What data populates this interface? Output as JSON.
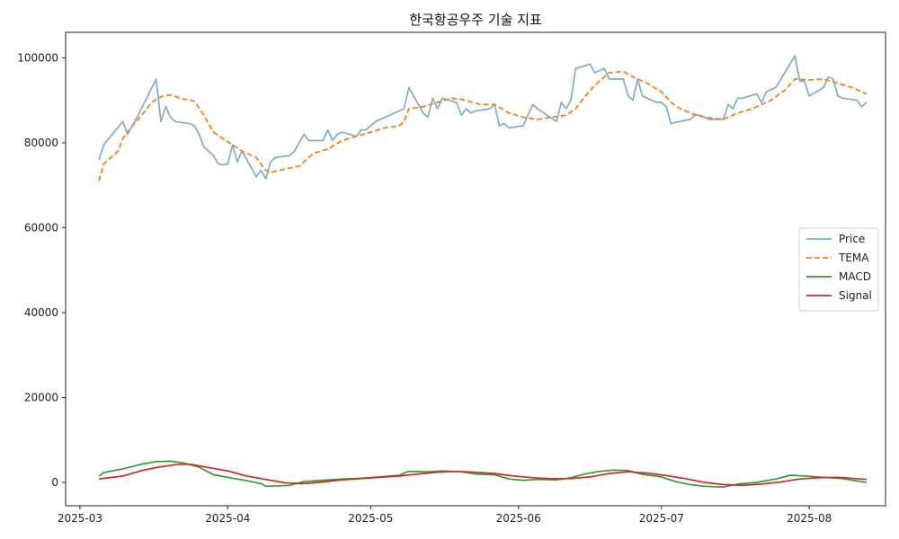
{
  "chart_data": {
    "type": "line",
    "title": "한국항공우주 기술 지표",
    "xlabel": "",
    "ylabel": "",
    "xlim": [
      "2025-02-26",
      "2025-08-17"
    ],
    "ylim": [
      -5500,
      106000
    ],
    "x_ticks": [
      {
        "date": "2025-03-01",
        "label": "2025-03"
      },
      {
        "date": "2025-04-01",
        "label": "2025-04"
      },
      {
        "date": "2025-05-01",
        "label": "2025-05"
      },
      {
        "date": "2025-06-01",
        "label": "2025-06"
      },
      {
        "date": "2025-07-01",
        "label": "2025-07"
      },
      {
        "date": "2025-08-01",
        "label": "2025-08"
      }
    ],
    "y_ticks": [
      {
        "value": 0,
        "label": "0"
      },
      {
        "value": 20000,
        "label": "20000"
      },
      {
        "value": 40000,
        "label": "40000"
      },
      {
        "value": 60000,
        "label": "60000"
      },
      {
        "value": 80000,
        "label": "80000"
      },
      {
        "value": 100000,
        "label": "100000"
      }
    ],
    "grid": false,
    "legend_position": "right",
    "series": [
      {
        "name": "Price",
        "color": "#7aadd0",
        "dash": "solid",
        "points": [
          [
            "2025-03-05",
            76000
          ],
          [
            "2025-03-06",
            79500
          ],
          [
            "2025-03-10",
            85000
          ],
          [
            "2025-03-11",
            82000
          ],
          [
            "2025-03-13",
            86000
          ],
          [
            "2025-03-17",
            95000
          ],
          [
            "2025-03-18",
            85000
          ],
          [
            "2025-03-19",
            88500
          ],
          [
            "2025-03-20",
            86000
          ],
          [
            "2025-03-21",
            85000
          ],
          [
            "2025-03-24",
            84500
          ],
          [
            "2025-03-25",
            84000
          ],
          [
            "2025-03-26",
            82000
          ],
          [
            "2025-03-27",
            79000
          ],
          [
            "2025-03-28",
            78000
          ],
          [
            "2025-03-29",
            77000
          ],
          [
            "2025-03-30",
            75000
          ],
          [
            "2025-03-31",
            74800
          ],
          [
            "2025-04-01",
            75000
          ],
          [
            "2025-04-02",
            79500
          ],
          [
            "2025-04-03",
            75500
          ],
          [
            "2025-04-04",
            78000
          ],
          [
            "2025-04-07",
            72000
          ],
          [
            "2025-04-08",
            73500
          ],
          [
            "2025-04-09",
            71500
          ],
          [
            "2025-04-10",
            75500
          ],
          [
            "2025-04-11",
            76500
          ],
          [
            "2025-04-14",
            77000
          ],
          [
            "2025-04-15",
            78000
          ],
          [
            "2025-04-16",
            80000
          ],
          [
            "2025-04-17",
            82000
          ],
          [
            "2025-04-18",
            80500
          ],
          [
            "2025-04-21",
            80500
          ],
          [
            "2025-04-22",
            83000
          ],
          [
            "2025-04-23",
            80500
          ],
          [
            "2025-04-24",
            82000
          ],
          [
            "2025-04-25",
            82500
          ],
          [
            "2025-04-28",
            81500
          ],
          [
            "2025-04-29",
            83000
          ],
          [
            "2025-04-30",
            83000
          ],
          [
            "2025-05-02",
            85000
          ],
          [
            "2025-05-07",
            87500
          ],
          [
            "2025-05-08",
            88000
          ],
          [
            "2025-05-09",
            93000
          ],
          [
            "2025-05-12",
            87000
          ],
          [
            "2025-05-13",
            86000
          ],
          [
            "2025-05-14",
            90500
          ],
          [
            "2025-05-15",
            88000
          ],
          [
            "2025-05-16",
            90500
          ],
          [
            "2025-05-19",
            89500
          ],
          [
            "2025-05-20",
            86500
          ],
          [
            "2025-05-21",
            88000
          ],
          [
            "2025-05-22",
            87000
          ],
          [
            "2025-05-23",
            87500
          ],
          [
            "2025-05-26",
            88000
          ],
          [
            "2025-05-27",
            89000
          ],
          [
            "2025-05-28",
            84000
          ],
          [
            "2025-05-29",
            84500
          ],
          [
            "2025-05-30",
            83500
          ],
          [
            "2025-06-02",
            84000
          ],
          [
            "2025-06-04",
            89000
          ],
          [
            "2025-06-05",
            88000
          ],
          [
            "2025-06-09",
            85000
          ],
          [
            "2025-06-10",
            89500
          ],
          [
            "2025-06-11",
            88000
          ],
          [
            "2025-06-12",
            90000
          ],
          [
            "2025-06-13",
            97500
          ],
          [
            "2025-06-16",
            98500
          ],
          [
            "2025-06-17",
            96500
          ],
          [
            "2025-06-18",
            97000
          ],
          [
            "2025-06-19",
            97500
          ],
          [
            "2025-06-20",
            95000
          ],
          [
            "2025-06-23",
            95000
          ],
          [
            "2025-06-24",
            91000
          ],
          [
            "2025-06-25",
            90000
          ],
          [
            "2025-06-26",
            95000
          ],
          [
            "2025-06-27",
            91000
          ],
          [
            "2025-06-30",
            89500
          ],
          [
            "2025-07-01",
            89500
          ],
          [
            "2025-07-02",
            88500
          ],
          [
            "2025-07-03",
            84500
          ],
          [
            "2025-07-04",
            84800
          ],
          [
            "2025-07-07",
            85500
          ],
          [
            "2025-07-08",
            86500
          ],
          [
            "2025-07-09",
            86500
          ],
          [
            "2025-07-10",
            86000
          ],
          [
            "2025-07-11",
            85500
          ],
          [
            "2025-07-14",
            85500
          ],
          [
            "2025-07-15",
            89000
          ],
          [
            "2025-07-16",
            88000
          ],
          [
            "2025-07-17",
            90500
          ],
          [
            "2025-07-18",
            90500
          ],
          [
            "2025-07-21",
            91500
          ],
          [
            "2025-07-22",
            89500
          ],
          [
            "2025-07-23",
            92000
          ],
          [
            "2025-07-25",
            93000
          ],
          [
            "2025-07-29",
            100500
          ],
          [
            "2025-07-30",
            94500
          ],
          [
            "2025-07-31",
            94500
          ],
          [
            "2025-08-01",
            91000
          ],
          [
            "2025-08-04",
            93000
          ],
          [
            "2025-08-05",
            95500
          ],
          [
            "2025-08-06",
            95000
          ],
          [
            "2025-08-07",
            91000
          ],
          [
            "2025-08-08",
            90500
          ],
          [
            "2025-08-11",
            90000
          ],
          [
            "2025-08-12",
            88500
          ],
          [
            "2025-08-13",
            89500
          ]
        ]
      },
      {
        "name": "TEMA",
        "color": "#ff7f0e",
        "dash": "dashed",
        "points": [
          [
            "2025-03-05",
            71000
          ],
          [
            "2025-03-06",
            75000
          ],
          [
            "2025-03-09",
            78000
          ],
          [
            "2025-03-10",
            81000
          ],
          [
            "2025-03-12",
            84000
          ],
          [
            "2025-03-14",
            86500
          ],
          [
            "2025-03-16",
            89500
          ],
          [
            "2025-03-18",
            90800
          ],
          [
            "2025-03-20",
            91300
          ],
          [
            "2025-03-22",
            90500
          ],
          [
            "2025-03-25",
            89800
          ],
          [
            "2025-03-27",
            86500
          ],
          [
            "2025-03-29",
            82500
          ],
          [
            "2025-03-31",
            81000
          ],
          [
            "2025-04-02",
            79500
          ],
          [
            "2025-04-04",
            78000
          ],
          [
            "2025-04-07",
            76500
          ],
          [
            "2025-04-09",
            73500
          ],
          [
            "2025-04-10",
            73000
          ],
          [
            "2025-04-13",
            73800
          ],
          [
            "2025-04-16",
            74500
          ],
          [
            "2025-04-19",
            77500
          ],
          [
            "2025-04-22",
            78500
          ],
          [
            "2025-04-25",
            80500
          ],
          [
            "2025-04-28",
            81500
          ],
          [
            "2025-05-01",
            82500
          ],
          [
            "2025-05-04",
            83500
          ],
          [
            "2025-05-07",
            84000
          ],
          [
            "2025-05-08",
            85000
          ],
          [
            "2025-05-09",
            88000
          ],
          [
            "2025-05-12",
            88500
          ],
          [
            "2025-05-15",
            89500
          ],
          [
            "2025-05-18",
            90500
          ],
          [
            "2025-05-21",
            90000
          ],
          [
            "2025-05-24",
            89000
          ],
          [
            "2025-05-27",
            89000
          ],
          [
            "2025-05-30",
            87000
          ],
          [
            "2025-06-02",
            86000
          ],
          [
            "2025-06-05",
            85500
          ],
          [
            "2025-06-08",
            86000
          ],
          [
            "2025-06-11",
            86500
          ],
          [
            "2025-06-13",
            88000
          ],
          [
            "2025-06-15",
            91000
          ],
          [
            "2025-06-17",
            93500
          ],
          [
            "2025-06-20",
            96500
          ],
          [
            "2025-06-23",
            96800
          ],
          [
            "2025-06-25",
            95500
          ],
          [
            "2025-06-28",
            94000
          ],
          [
            "2025-07-01",
            92000
          ],
          [
            "2025-07-03",
            89500
          ],
          [
            "2025-07-05",
            88000
          ],
          [
            "2025-07-07",
            87000
          ],
          [
            "2025-07-10",
            86000
          ],
          [
            "2025-07-14",
            85500
          ],
          [
            "2025-07-17",
            87000
          ],
          [
            "2025-07-20",
            88000
          ],
          [
            "2025-07-24",
            90000
          ],
          [
            "2025-07-27",
            92500
          ],
          [
            "2025-07-29",
            95000
          ],
          [
            "2025-08-01",
            94800
          ],
          [
            "2025-08-04",
            95000
          ],
          [
            "2025-08-07",
            94000
          ],
          [
            "2025-08-10",
            93000
          ],
          [
            "2025-08-13",
            91500
          ]
        ]
      },
      {
        "name": "MACD",
        "color": "#2ca02c",
        "dash": "solid",
        "points": [
          [
            "2025-03-05",
            1500
          ],
          [
            "2025-03-06",
            2300
          ],
          [
            "2025-03-10",
            3200
          ],
          [
            "2025-03-14",
            4300
          ],
          [
            "2025-03-17",
            4900
          ],
          [
            "2025-03-20",
            5000
          ],
          [
            "2025-03-23",
            4500
          ],
          [
            "2025-03-26",
            3600
          ],
          [
            "2025-03-29",
            1800
          ],
          [
            "2025-04-02",
            1000
          ],
          [
            "2025-04-05",
            400
          ],
          [
            "2025-04-08",
            -300
          ],
          [
            "2025-04-09",
            -900
          ],
          [
            "2025-04-14",
            -700
          ],
          [
            "2025-04-17",
            200
          ],
          [
            "2025-04-21",
            500
          ],
          [
            "2025-04-25",
            800
          ],
          [
            "2025-04-29",
            1000
          ],
          [
            "2025-05-03",
            1300
          ],
          [
            "2025-05-07",
            1700
          ],
          [
            "2025-05-09",
            2600
          ],
          [
            "2025-05-13",
            2500
          ],
          [
            "2025-05-16",
            2700
          ],
          [
            "2025-05-20",
            2500
          ],
          [
            "2025-05-23",
            2000
          ],
          [
            "2025-05-27",
            1800
          ],
          [
            "2025-05-30",
            800
          ],
          [
            "2025-06-02",
            500
          ],
          [
            "2025-06-05",
            700
          ],
          [
            "2025-06-09",
            600
          ],
          [
            "2025-06-12",
            1100
          ],
          [
            "2025-06-15",
            2000
          ],
          [
            "2025-06-18",
            2600
          ],
          [
            "2025-06-21",
            2900
          ],
          [
            "2025-06-24",
            2800
          ],
          [
            "2025-06-27",
            1900
          ],
          [
            "2025-07-01",
            1300
          ],
          [
            "2025-07-04",
            200
          ],
          [
            "2025-07-07",
            -500
          ],
          [
            "2025-07-10",
            -900
          ],
          [
            "2025-07-14",
            -1100
          ],
          [
            "2025-07-17",
            -400
          ],
          [
            "2025-07-21",
            0
          ],
          [
            "2025-07-25",
            800
          ],
          [
            "2025-07-28",
            1700
          ],
          [
            "2025-07-31",
            1500
          ],
          [
            "2025-08-04",
            1200
          ],
          [
            "2025-08-08",
            900
          ],
          [
            "2025-08-13",
            0
          ]
        ]
      },
      {
        "name": "Signal",
        "color": "#d62728",
        "dash": "solid",
        "points": [
          [
            "2025-03-05",
            800
          ],
          [
            "2025-03-10",
            1500
          ],
          [
            "2025-03-14",
            2800
          ],
          [
            "2025-03-17",
            3500
          ],
          [
            "2025-03-21",
            4200
          ],
          [
            "2025-03-24",
            4300
          ],
          [
            "2025-03-28",
            3500
          ],
          [
            "2025-04-01",
            2700
          ],
          [
            "2025-04-05",
            1500
          ],
          [
            "2025-04-09",
            700
          ],
          [
            "2025-04-13",
            -100
          ],
          [
            "2025-04-17",
            -300
          ],
          [
            "2025-04-21",
            100
          ],
          [
            "2025-04-25",
            600
          ],
          [
            "2025-04-29",
            900
          ],
          [
            "2025-05-03",
            1200
          ],
          [
            "2025-05-07",
            1500
          ],
          [
            "2025-05-11",
            2000
          ],
          [
            "2025-05-15",
            2400
          ],
          [
            "2025-05-19",
            2600
          ],
          [
            "2025-05-23",
            2400
          ],
          [
            "2025-05-27",
            2100
          ],
          [
            "2025-05-31",
            1500
          ],
          [
            "2025-06-04",
            1100
          ],
          [
            "2025-06-08",
            900
          ],
          [
            "2025-06-12",
            900
          ],
          [
            "2025-06-16",
            1300
          ],
          [
            "2025-06-20",
            2100
          ],
          [
            "2025-06-24",
            2500
          ],
          [
            "2025-06-28",
            2200
          ],
          [
            "2025-07-02",
            1600
          ],
          [
            "2025-07-06",
            900
          ],
          [
            "2025-07-10",
            0
          ],
          [
            "2025-07-14",
            -500
          ],
          [
            "2025-07-18",
            -700
          ],
          [
            "2025-07-22",
            -400
          ],
          [
            "2025-07-26",
            100
          ],
          [
            "2025-07-30",
            800
          ],
          [
            "2025-08-03",
            1100
          ],
          [
            "2025-08-07",
            1200
          ],
          [
            "2025-08-13",
            700
          ]
        ]
      }
    ]
  }
}
